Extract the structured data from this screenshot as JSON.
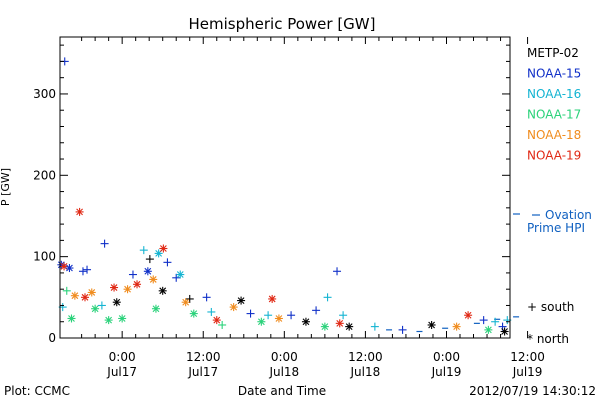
{
  "chart_data": {
    "type": "scatter",
    "title": "Hemispheric Power [GW]",
    "ylabel": "P [GW]",
    "xlabel": "Date and Time",
    "ylim": [
      0,
      370
    ],
    "y_ticks": [
      {
        "value": 0,
        "label": "0"
      },
      {
        "value": 100,
        "label": "100"
      },
      {
        "value": 200,
        "label": "200"
      },
      {
        "value": 300,
        "label": "300"
      }
    ],
    "xlim": [
      -9.2,
      57.4
    ],
    "x_units": "hours since 2012-07-17 00:00 UT",
    "x_ticks": [
      {
        "value": 0,
        "line1": "0:00",
        "line2": "Jul17"
      },
      {
        "value": 12,
        "line1": "12:00",
        "line2": "Jul17"
      },
      {
        "value": 24,
        "line1": "0:00",
        "line2": "Jul18"
      },
      {
        "value": 36,
        "line1": "12:00",
        "line2": "Jul18"
      },
      {
        "value": 48,
        "line1": "0:00",
        "line2": "Jul19"
      },
      {
        "value": 60,
        "line1": "12:00",
        "line2": "Jul19"
      }
    ],
    "series": [
      {
        "name": "METP-02",
        "color": "#000000"
      },
      {
        "name": "NOAA-15",
        "color": "#1030c8"
      },
      {
        "name": "NOAA-16",
        "color": "#14b4d2"
      },
      {
        "name": "NOAA-17",
        "color": "#2ad27a"
      },
      {
        "name": "NOAA-18",
        "color": "#f08c1e"
      },
      {
        "name": "NOAA-19",
        "color": "#e02814"
      }
    ],
    "marker_legend": [
      {
        "symbol": "+",
        "label": "south"
      },
      {
        "symbol": "*",
        "label": "north"
      }
    ],
    "reference": {
      "name_line1": "Ovation",
      "name_line2": "Prime HPI",
      "color": "#1060c0",
      "points": [
        {
          "x": 58.3,
          "y": 26
        },
        {
          "x": 55.5,
          "y": 23
        },
        {
          "x": 52.5,
          "y": 18
        },
        {
          "x": 47.8,
          "y": 12
        },
        {
          "x": 44.0,
          "y": 8
        },
        {
          "x": 39.5,
          "y": 10
        }
      ]
    },
    "annotations": {
      "plot_source": "Plot: CCMC",
      "timestamp": "2012/07/19 14:30:12"
    },
    "points": [
      {
        "s": "NOAA-15",
        "m": "+",
        "x": -8.5,
        "y": 340
      },
      {
        "s": "NOAA-19",
        "m": "*",
        "x": -6.3,
        "y": 155
      },
      {
        "s": "NOAA-15",
        "m": "+",
        "x": -2.6,
        "y": 116
      },
      {
        "s": "NOAA-15",
        "m": "*",
        "x": -9.0,
        "y": 90
      },
      {
        "s": "NOAA-19",
        "m": "*",
        "x": -8.6,
        "y": 88
      },
      {
        "s": "NOAA-15",
        "m": "*",
        "x": -7.8,
        "y": 86
      },
      {
        "s": "NOAA-17",
        "m": "+",
        "x": -8.2,
        "y": 58
      },
      {
        "s": "NOAA-18",
        "m": "*",
        "x": -7.0,
        "y": 52
      },
      {
        "s": "NOAA-16",
        "m": "+",
        "x": -8.8,
        "y": 38
      },
      {
        "s": "NOAA-17",
        "m": "*",
        "x": -7.5,
        "y": 24
      },
      {
        "s": "NOAA-15",
        "m": "+",
        "x": -5.8,
        "y": 82
      },
      {
        "s": "NOAA-15",
        "m": "+",
        "x": -5.2,
        "y": 84
      },
      {
        "s": "NOAA-19",
        "m": "*",
        "x": -5.5,
        "y": 50
      },
      {
        "s": "NOAA-18",
        "m": "*",
        "x": -4.5,
        "y": 56
      },
      {
        "s": "NOAA-17",
        "m": "*",
        "x": -4.0,
        "y": 36
      },
      {
        "s": "NOAA-16",
        "m": "+",
        "x": -3.0,
        "y": 40
      },
      {
        "s": "NOAA-17",
        "m": "*",
        "x": -2.0,
        "y": 22
      },
      {
        "s": "NOAA-19",
        "m": "*",
        "x": -1.2,
        "y": 62
      },
      {
        "s": "METP-02",
        "m": "*",
        "x": -0.8,
        "y": 44
      },
      {
        "s": "NOAA-18",
        "m": "*",
        "x": 0.8,
        "y": 60
      },
      {
        "s": "NOAA-15",
        "m": "+",
        "x": 1.6,
        "y": 78
      },
      {
        "s": "NOAA-19",
        "m": "*",
        "x": 2.2,
        "y": 66
      },
      {
        "s": "NOAA-17",
        "m": "*",
        "x": 0.0,
        "y": 24
      },
      {
        "s": "NOAA-16",
        "m": "+",
        "x": 3.2,
        "y": 108
      },
      {
        "s": "METP-02",
        "m": "+",
        "x": 4.1,
        "y": 97
      },
      {
        "s": "NOAA-15",
        "m": "*",
        "x": 3.8,
        "y": 82
      },
      {
        "s": "NOAA-16",
        "m": "*",
        "x": 5.4,
        "y": 104
      },
      {
        "s": "NOAA-19",
        "m": "*",
        "x": 6.1,
        "y": 110
      },
      {
        "s": "NOAA-15",
        "m": "+",
        "x": 6.7,
        "y": 93
      },
      {
        "s": "NOAA-18",
        "m": "*",
        "x": 4.6,
        "y": 72
      },
      {
        "s": "NOAA-17",
        "m": "*",
        "x": 5.0,
        "y": 36
      },
      {
        "s": "METP-02",
        "m": "*",
        "x": 6.0,
        "y": 58
      },
      {
        "s": "NOAA-15",
        "m": "+",
        "x": 8.0,
        "y": 74
      },
      {
        "s": "NOAA-16",
        "m": "*",
        "x": 8.6,
        "y": 78
      },
      {
        "s": "METP-02",
        "m": "+",
        "x": 10.0,
        "y": 48
      },
      {
        "s": "NOAA-18",
        "m": "*",
        "x": 9.4,
        "y": 44
      },
      {
        "s": "NOAA-17",
        "m": "*",
        "x": 10.6,
        "y": 30
      },
      {
        "s": "NOAA-15",
        "m": "+",
        "x": 12.5,
        "y": 50
      },
      {
        "s": "NOAA-16",
        "m": "+",
        "x": 13.2,
        "y": 32
      },
      {
        "s": "NOAA-19",
        "m": "*",
        "x": 14.0,
        "y": 22
      },
      {
        "s": "NOAA-17",
        "m": "+",
        "x": 14.8,
        "y": 16
      },
      {
        "s": "METP-02",
        "m": "*",
        "x": 17.6,
        "y": 46
      },
      {
        "s": "NOAA-18",
        "m": "*",
        "x": 16.5,
        "y": 38
      },
      {
        "s": "NOAA-15",
        "m": "+",
        "x": 19.0,
        "y": 30
      },
      {
        "s": "NOAA-19",
        "m": "*",
        "x": 22.2,
        "y": 48
      },
      {
        "s": "NOAA-16",
        "m": "+",
        "x": 21.6,
        "y": 28
      },
      {
        "s": "NOAA-17",
        "m": "*",
        "x": 20.6,
        "y": 20
      },
      {
        "s": "NOAA-18",
        "m": "*",
        "x": 23.2,
        "y": 24
      },
      {
        "s": "NOAA-15",
        "m": "+",
        "x": 25.0,
        "y": 28
      },
      {
        "s": "METP-02",
        "m": "*",
        "x": 27.2,
        "y": 20
      },
      {
        "s": "NOAA-15",
        "m": "+",
        "x": 28.7,
        "y": 34
      },
      {
        "s": "NOAA-16",
        "m": "+",
        "x": 30.4,
        "y": 50
      },
      {
        "s": "NOAA-15",
        "m": "+",
        "x": 31.8,
        "y": 82
      },
      {
        "s": "NOAA-19",
        "m": "*",
        "x": 32.2,
        "y": 18
      },
      {
        "s": "NOAA-16",
        "m": "+",
        "x": 32.7,
        "y": 28
      },
      {
        "s": "METP-02",
        "m": "*",
        "x": 33.6,
        "y": 14
      },
      {
        "s": "NOAA-17",
        "m": "*",
        "x": 30.0,
        "y": 14
      },
      {
        "s": "NOAA-16",
        "m": "+",
        "x": 37.4,
        "y": 14
      },
      {
        "s": "NOAA-15",
        "m": "+",
        "x": 41.5,
        "y": 10
      },
      {
        "s": "METP-02",
        "m": "*",
        "x": 45.8,
        "y": 16
      },
      {
        "s": "NOAA-19",
        "m": "*",
        "x": 51.2,
        "y": 28
      },
      {
        "s": "NOAA-18",
        "m": "*",
        "x": 49.5,
        "y": 14
      },
      {
        "s": "NOAA-15",
        "m": "+",
        "x": 53.5,
        "y": 22
      },
      {
        "s": "NOAA-16",
        "m": "+",
        "x": 55.2,
        "y": 20
      },
      {
        "s": "NOAA-15",
        "m": "+",
        "x": 56.3,
        "y": 14
      },
      {
        "s": "NOAA-16",
        "m": "+",
        "x": 57.0,
        "y": 22
      },
      {
        "s": "METP-02",
        "m": "*",
        "x": 56.6,
        "y": 8
      },
      {
        "s": "NOAA-17",
        "m": "*",
        "x": 54.2,
        "y": 10
      }
    ]
  }
}
